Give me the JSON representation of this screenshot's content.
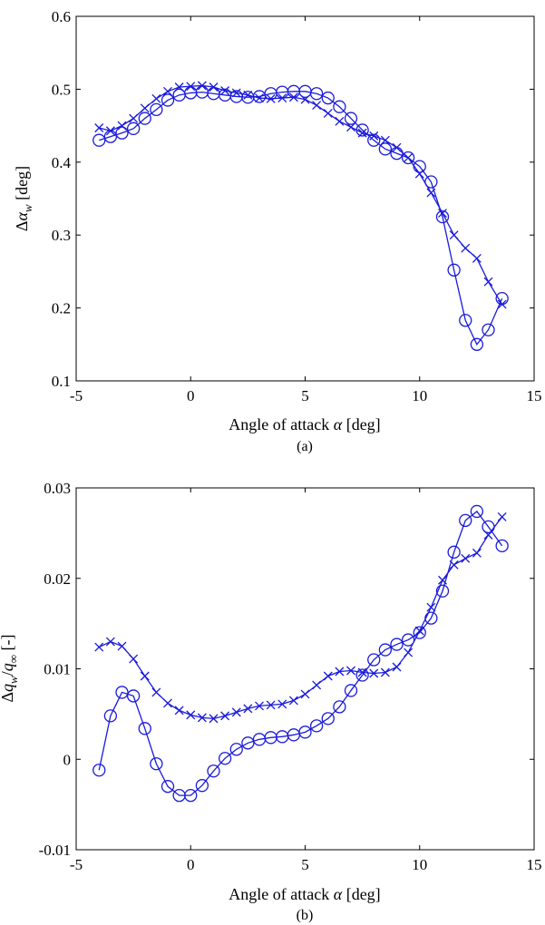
{
  "chart_data": [
    {
      "type": "line",
      "panel_caption": "(a)",
      "xlabel": "Angle of attack α [deg]",
      "ylabel": "Δα_w [deg]",
      "xlim": [
        -5,
        15
      ],
      "ylim": [
        0.1,
        0.6
      ],
      "xticks": [
        -5,
        0,
        5,
        10,
        15
      ],
      "xtick_labels": [
        "-5",
        "0",
        "5",
        "10",
        "15"
      ],
      "yticks": [
        0.1,
        0.2,
        0.3,
        0.4,
        0.5,
        0.6
      ],
      "ytick_labels": [
        "0.1",
        "0.2",
        "0.3",
        "0.4",
        "0.5",
        "0.6"
      ],
      "grid": false,
      "series": [
        {
          "marker": "o",
          "color": "#1a1adb",
          "x": [
            -4,
            -3.5,
            -3,
            -2.5,
            -2,
            -1.5,
            -1,
            -0.5,
            0,
            0.5,
            1,
            1.5,
            2,
            2.5,
            3,
            3.5,
            4,
            4.5,
            5,
            5.5,
            6,
            6.5,
            7,
            7.5,
            8,
            8.5,
            9,
            9.5,
            10,
            10.5,
            11,
            11.5,
            12,
            12.5,
            13,
            13.6
          ],
          "y": [
            0.43,
            0.435,
            0.44,
            0.446,
            0.46,
            0.472,
            0.485,
            0.492,
            0.495,
            0.496,
            0.494,
            0.492,
            0.49,
            0.489,
            0.49,
            0.494,
            0.496,
            0.497,
            0.497,
            0.494,
            0.488,
            0.476,
            0.46,
            0.444,
            0.43,
            0.418,
            0.412,
            0.406,
            0.394,
            0.373,
            0.325,
            0.252,
            0.183,
            0.15,
            0.17,
            0.213
          ]
        },
        {
          "marker": "x",
          "color": "#1a1adb",
          "x": [
            -4,
            -3.5,
            -3,
            -2.5,
            -2,
            -1.5,
            -1,
            -0.5,
            0,
            0.5,
            1,
            1.5,
            2,
            2.5,
            3,
            3.5,
            4,
            4.5,
            5,
            5.5,
            6,
            6.5,
            7,
            7.5,
            8,
            8.5,
            9,
            9.5,
            10,
            10.5,
            11,
            11.5,
            12,
            12.5,
            13,
            13.6
          ],
          "y": [
            0.447,
            0.443,
            0.45,
            0.46,
            0.474,
            0.487,
            0.497,
            0.503,
            0.504,
            0.505,
            0.503,
            0.498,
            0.495,
            0.492,
            0.488,
            0.487,
            0.488,
            0.489,
            0.486,
            0.478,
            0.467,
            0.456,
            0.448,
            0.44,
            0.436,
            0.43,
            0.42,
            0.406,
            0.384,
            0.358,
            0.33,
            0.3,
            0.282,
            0.268,
            0.236,
            0.205
          ]
        }
      ]
    },
    {
      "type": "line",
      "panel_caption": "(b)",
      "xlabel": "Angle of attack α [deg]",
      "ylabel": "Δq_w/q_∞ [-]",
      "xlim": [
        -5,
        15
      ],
      "ylim": [
        -0.01,
        0.03
      ],
      "xticks": [
        -5,
        0,
        5,
        10,
        15
      ],
      "xtick_labels": [
        "-5",
        "0",
        "5",
        "10",
        "15"
      ],
      "yticks": [
        -0.01,
        0,
        0.01,
        0.02,
        0.03
      ],
      "ytick_labels": [
        "-0.01",
        "0",
        "0.01",
        "0.02",
        "0.03"
      ],
      "grid": false,
      "series": [
        {
          "marker": "o",
          "color": "#1a1adb",
          "x": [
            -4,
            -3.5,
            -3,
            -2.5,
            -2,
            -1.5,
            -1,
            -0.5,
            0,
            0.5,
            1,
            1.5,
            2,
            2.5,
            3,
            3.5,
            4,
            4.5,
            5,
            5.5,
            6,
            6.5,
            7,
            7.5,
            8,
            8.5,
            9,
            9.5,
            10,
            10.5,
            11,
            11.5,
            12,
            12.5,
            13,
            13.6
          ],
          "y": [
            -0.0012,
            0.0048,
            0.0074,
            0.007,
            0.0034,
            -0.0005,
            -0.003,
            -0.004,
            -0.004,
            -0.0029,
            -0.0013,
            0.0001,
            0.0011,
            0.0018,
            0.0022,
            0.0024,
            0.0025,
            0.0027,
            0.003,
            0.0037,
            0.0045,
            0.0058,
            0.0076,
            0.0093,
            0.011,
            0.0121,
            0.0127,
            0.0132,
            0.014,
            0.0156,
            0.0186,
            0.0229,
            0.0264,
            0.0274,
            0.0257,
            0.0236
          ]
        },
        {
          "marker": "x",
          "color": "#1a1adb",
          "x": [
            -4,
            -3.5,
            -3,
            -2.5,
            -2,
            -1.5,
            -1,
            -0.5,
            0,
            0.5,
            1,
            1.5,
            2,
            2.5,
            3,
            3.5,
            4,
            4.5,
            5,
            5.5,
            6,
            6.5,
            7,
            7.5,
            8,
            8.5,
            9,
            9.5,
            10,
            10.5,
            11,
            11.5,
            12,
            12.5,
            13,
            13.6
          ],
          "y": [
            0.0124,
            0.013,
            0.0125,
            0.0111,
            0.0092,
            0.0074,
            0.0062,
            0.0054,
            0.0049,
            0.0046,
            0.0045,
            0.0048,
            0.0052,
            0.0056,
            0.0059,
            0.006,
            0.0061,
            0.0065,
            0.0072,
            0.0082,
            0.0092,
            0.0097,
            0.0098,
            0.0096,
            0.0095,
            0.0096,
            0.0102,
            0.0118,
            0.0142,
            0.0168,
            0.0198,
            0.0215,
            0.0222,
            0.0228,
            0.0248,
            0.0268
          ]
        }
      ]
    }
  ]
}
